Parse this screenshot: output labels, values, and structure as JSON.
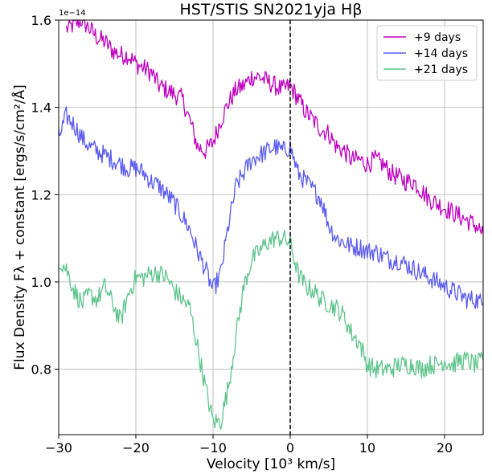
{
  "chart_data": {
    "type": "line",
    "title": "HST/STIS SN2021yja Hβ",
    "xlabel": "Velocity [10³ km/s]",
    "ylabel": "Flux Density Fλ + constant [ergs/s/cm²/Å]",
    "offset_text": "1e−14",
    "xlim": [
      -30,
      25
    ],
    "ylim": [
      0.65,
      1.6
    ],
    "xticks": [
      -30,
      -20,
      -10,
      0,
      10,
      20
    ],
    "xtick_labels": [
      "−30",
      "−20",
      "−10",
      "0",
      "10",
      "20"
    ],
    "yticks": [
      0.8,
      1.0,
      1.2,
      1.4,
      1.6
    ],
    "ytick_labels": [
      "0.8",
      "1.0",
      "1.2",
      "1.4",
      "1.6"
    ],
    "grid": true,
    "legend_position": "top-right",
    "vline": {
      "x": 0,
      "style": "dashed",
      "color": "#000000"
    },
    "series": [
      {
        "name": "+9 days",
        "color": "#bf00bf",
        "x": [
          -29,
          -28,
          -27,
          -26,
          -25,
          -24,
          -23,
          -22,
          -21,
          -20,
          -19,
          -18,
          -17,
          -16,
          -15,
          -14,
          -13,
          -12,
          -11,
          -10,
          -9,
          -8,
          -7,
          -6,
          -5,
          -4,
          -3,
          -2,
          -1,
          0,
          1,
          2,
          3,
          4,
          5,
          6,
          7,
          8,
          9,
          10,
          11,
          12,
          13,
          14,
          15,
          16,
          17,
          18,
          19,
          20,
          21,
          22,
          23,
          24,
          25
        ],
        "y": [
          1.58,
          1.59,
          1.6,
          1.58,
          1.56,
          1.55,
          1.53,
          1.52,
          1.52,
          1.5,
          1.49,
          1.48,
          1.45,
          1.44,
          1.43,
          1.42,
          1.37,
          1.31,
          1.3,
          1.32,
          1.37,
          1.41,
          1.44,
          1.45,
          1.47,
          1.47,
          1.46,
          1.45,
          1.44,
          1.45,
          1.42,
          1.39,
          1.37,
          1.35,
          1.34,
          1.31,
          1.3,
          1.28,
          1.28,
          1.27,
          1.28,
          1.27,
          1.25,
          1.24,
          1.23,
          1.23,
          1.21,
          1.19,
          1.18,
          1.17,
          1.16,
          1.15,
          1.14,
          1.13,
          1.11
        ]
      },
      {
        "name": "+14 days",
        "color": "#5a5af0",
        "x": [
          -30,
          -29,
          -28,
          -27,
          -26,
          -25,
          -24,
          -23,
          -22,
          -21,
          -20,
          -19,
          -18,
          -17,
          -16,
          -15,
          -14,
          -13,
          -12,
          -11,
          -10,
          -9,
          -8,
          -7,
          -6,
          -5,
          -4,
          -3,
          -2,
          -1,
          0,
          1,
          2,
          3,
          4,
          5,
          6,
          7,
          8,
          9,
          10,
          11,
          12,
          13,
          14,
          15,
          16,
          17,
          18,
          19,
          20,
          21,
          22,
          23,
          24,
          25
        ],
        "y": [
          1.33,
          1.38,
          1.36,
          1.33,
          1.31,
          1.3,
          1.29,
          1.28,
          1.27,
          1.26,
          1.26,
          1.25,
          1.23,
          1.22,
          1.2,
          1.18,
          1.15,
          1.12,
          1.07,
          1.03,
          0.98,
          1.02,
          1.13,
          1.22,
          1.25,
          1.28,
          1.29,
          1.3,
          1.31,
          1.3,
          1.31,
          1.25,
          1.23,
          1.21,
          1.19,
          1.13,
          1.1,
          1.09,
          1.08,
          1.08,
          1.07,
          1.07,
          1.06,
          1.05,
          1.05,
          1.04,
          1.03,
          1.02,
          1.01,
          1.0,
          0.99,
          0.98,
          0.97,
          0.96,
          0.96,
          0.95
        ]
      },
      {
        "name": "+21 days",
        "color": "#5ec48c",
        "x": [
          -30,
          -29,
          -28,
          -27,
          -26,
          -25,
          -24,
          -23,
          -22,
          -21,
          -20,
          -19,
          -18,
          -17,
          -16,
          -15,
          -14,
          -13,
          -12,
          -11,
          -10,
          -9,
          -8,
          -7,
          -6,
          -5,
          -4,
          -3,
          -2,
          -1,
          0,
          1,
          2,
          3,
          4,
          5,
          6,
          7,
          8,
          9,
          10,
          11,
          12,
          13,
          14,
          15,
          16,
          17,
          18,
          19,
          20,
          21,
          22,
          23,
          24,
          25
        ],
        "y": [
          1.05,
          1.03,
          0.98,
          0.95,
          0.97,
          0.96,
          0.99,
          0.95,
          0.91,
          0.97,
          1.01,
          1.01,
          1.02,
          1.02,
          1.01,
          0.98,
          0.96,
          0.94,
          0.85,
          0.76,
          0.68,
          0.68,
          0.76,
          0.88,
          0.99,
          1.05,
          1.07,
          1.09,
          1.1,
          1.1,
          1.09,
          1.02,
          0.99,
          0.98,
          0.96,
          0.95,
          0.94,
          0.92,
          0.88,
          0.86,
          0.81,
          0.8,
          0.8,
          0.8,
          0.81,
          0.81,
          0.81,
          0.8,
          0.81,
          0.81,
          0.82,
          0.81,
          0.82,
          0.82,
          0.81,
          0.82
        ]
      }
    ]
  }
}
